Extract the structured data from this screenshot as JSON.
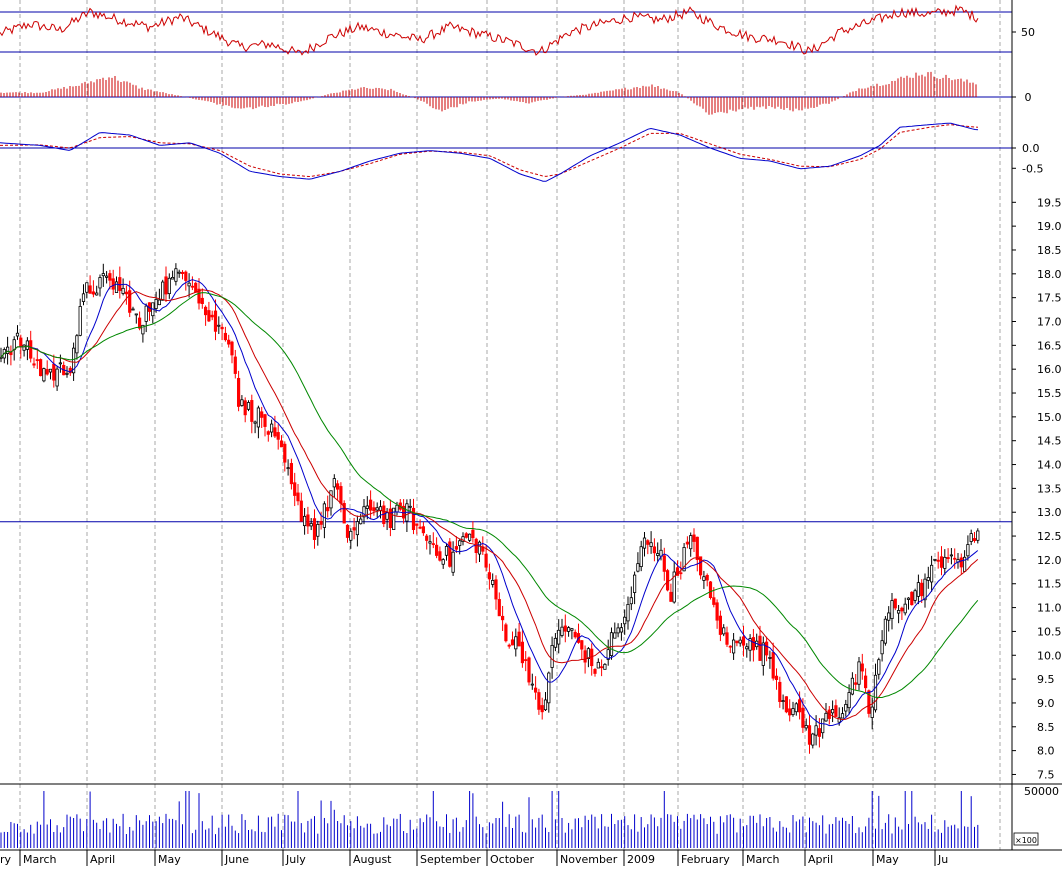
{
  "chart_data": {
    "type": "candlestick-stock-chart",
    "x_labels": [
      "ry",
      "March",
      "April",
      "May",
      "June",
      "July",
      "August",
      "September",
      "October",
      "November",
      "2009",
      "February",
      "March",
      "April",
      "May",
      "Ju"
    ],
    "price": {
      "ylim": [
        7.3,
        19.8
      ],
      "ticks": [
        "19.5",
        "19.0",
        "18.5",
        "18.0",
        "17.5",
        "17.0",
        "16.5",
        "16.0",
        "15.5",
        "15.0",
        "14.5",
        "14.0",
        "13.5",
        "13.0",
        "12.5",
        "12.0",
        "11.5",
        "11.0",
        "10.5",
        "10.0",
        "9.5",
        "9.0",
        "8.5",
        "8.0",
        "7.5"
      ],
      "horizontal_line": 12.8,
      "close_anchors": [
        [
          0,
          16.4
        ],
        [
          20,
          16.6
        ],
        [
          40,
          16.0
        ],
        [
          55,
          15.9
        ],
        [
          70,
          16.1
        ],
        [
          85,
          17.6
        ],
        [
          100,
          17.8
        ],
        [
          115,
          17.8
        ],
        [
          130,
          17.4
        ],
        [
          140,
          16.8
        ],
        [
          155,
          17.6
        ],
        [
          170,
          17.8
        ],
        [
          185,
          18.1
        ],
        [
          195,
          17.8
        ],
        [
          205,
          17.2
        ],
        [
          215,
          16.9
        ],
        [
          230,
          16.7
        ],
        [
          240,
          15.2
        ],
        [
          255,
          15.1
        ],
        [
          270,
          14.7
        ],
        [
          285,
          14.0
        ],
        [
          295,
          13.2
        ],
        [
          305,
          12.9
        ],
        [
          315,
          12.6
        ],
        [
          325,
          13.0
        ],
        [
          335,
          13.7
        ],
        [
          345,
          12.5
        ],
        [
          360,
          12.8
        ],
        [
          375,
          13.2
        ],
        [
          390,
          12.8
        ],
        [
          405,
          13.1
        ],
        [
          420,
          12.6
        ],
        [
          435,
          12.3
        ],
        [
          450,
          12.0
        ],
        [
          465,
          12.5
        ],
        [
          480,
          12.3
        ],
        [
          490,
          11.6
        ],
        [
          500,
          10.8
        ],
        [
          510,
          10.3
        ],
        [
          520,
          10.2
        ],
        [
          530,
          9.6
        ],
        [
          540,
          8.6
        ],
        [
          545,
          9.1
        ],
        [
          550,
          9.9
        ],
        [
          560,
          10.6
        ],
        [
          570,
          10.5
        ],
        [
          580,
          10.2
        ],
        [
          590,
          9.9
        ],
        [
          600,
          9.6
        ],
        [
          610,
          10.3
        ],
        [
          620,
          10.6
        ],
        [
          630,
          11.0
        ],
        [
          640,
          12.2
        ],
        [
          650,
          12.5
        ],
        [
          660,
          12.1
        ],
        [
          670,
          11.3
        ],
        [
          680,
          11.9
        ],
        [
          690,
          12.4
        ],
        [
          700,
          11.9
        ],
        [
          710,
          11.2
        ],
        [
          720,
          10.6
        ],
        [
          730,
          10.1
        ],
        [
          740,
          10.5
        ],
        [
          750,
          10.2
        ],
        [
          760,
          10.1
        ],
        [
          770,
          10.0
        ],
        [
          780,
          9.2
        ],
        [
          790,
          8.9
        ],
        [
          800,
          8.7
        ],
        [
          810,
          8.3
        ],
        [
          820,
          8.4
        ],
        [
          830,
          8.9
        ],
        [
          840,
          8.8
        ],
        [
          850,
          9.2
        ],
        [
          860,
          9.7
        ],
        [
          870,
          8.7
        ],
        [
          880,
          10.1
        ],
        [
          890,
          11.0
        ],
        [
          900,
          11.1
        ],
        [
          910,
          11.1
        ],
        [
          920,
          11.4
        ],
        [
          930,
          11.7
        ],
        [
          940,
          12.0
        ],
        [
          950,
          12.2
        ],
        [
          960,
          11.7
        ],
        [
          970,
          12.6
        ],
        [
          976,
          12.4
        ]
      ],
      "moving_averages": [
        {
          "color": "#0000cc",
          "period": 10
        },
        {
          "color": "#cc0000",
          "period": 18
        },
        {
          "color": "#008800",
          "period": 38
        }
      ]
    },
    "volume": {
      "scale_label": "50000",
      "scale_value": 50000,
      "multiplier_label": "×100"
    },
    "rsi": {
      "ticks": [
        "50"
      ],
      "upper_line": 70,
      "lower_line": 30,
      "anchors": [
        [
          0,
          48
        ],
        [
          30,
          58
        ],
        [
          60,
          52
        ],
        [
          90,
          70
        ],
        [
          120,
          62
        ],
        [
          150,
          55
        ],
        [
          180,
          65
        ],
        [
          210,
          50
        ],
        [
          240,
          35
        ],
        [
          270,
          38
        ],
        [
          300,
          28
        ],
        [
          330,
          45
        ],
        [
          360,
          55
        ],
        [
          390,
          48
        ],
        [
          420,
          42
        ],
        [
          450,
          55
        ],
        [
          480,
          48
        ],
        [
          510,
          40
        ],
        [
          540,
          30
        ],
        [
          570,
          50
        ],
        [
          600,
          58
        ],
        [
          630,
          65
        ],
        [
          660,
          62
        ],
        [
          690,
          70
        ],
        [
          720,
          55
        ],
        [
          750,
          45
        ],
        [
          780,
          42
        ],
        [
          810,
          30
        ],
        [
          840,
          50
        ],
        [
          870,
          60
        ],
        [
          900,
          70
        ],
        [
          930,
          68
        ],
        [
          960,
          72
        ],
        [
          976,
          65
        ]
      ]
    },
    "histogram": {
      "ticks": [
        "0"
      ],
      "anchors": [
        [
          0,
          3
        ],
        [
          40,
          3
        ],
        [
          80,
          8
        ],
        [
          110,
          14
        ],
        [
          140,
          6
        ],
        [
          170,
          2
        ],
        [
          200,
          -2
        ],
        [
          240,
          -8
        ],
        [
          270,
          -6
        ],
        [
          300,
          -3
        ],
        [
          330,
          2
        ],
        [
          360,
          6
        ],
        [
          390,
          5
        ],
        [
          420,
          -2
        ],
        [
          440,
          -10
        ],
        [
          470,
          -3
        ],
        [
          500,
          -1
        ],
        [
          530,
          -4
        ],
        [
          560,
          0
        ],
        [
          590,
          2
        ],
        [
          620,
          5
        ],
        [
          650,
          8
        ],
        [
          680,
          3
        ],
        [
          710,
          -12
        ],
        [
          740,
          -8
        ],
        [
          770,
          -7
        ],
        [
          800,
          -9
        ],
        [
          830,
          -4
        ],
        [
          860,
          6
        ],
        [
          890,
          10
        ],
        [
          920,
          16
        ],
        [
          940,
          14
        ],
        [
          976,
          9
        ]
      ]
    },
    "macd": {
      "ticks": [
        "0.0",
        "-0.5"
      ],
      "zero_line": 0,
      "line_anchors": [
        [
          0,
          0.1
        ],
        [
          40,
          0.05
        ],
        [
          70,
          -0.05
        ],
        [
          100,
          0.3
        ],
        [
          130,
          0.25
        ],
        [
          160,
          0.05
        ],
        [
          190,
          0.1
        ],
        [
          220,
          -0.1
        ],
        [
          250,
          -0.45
        ],
        [
          280,
          -0.55
        ],
        [
          310,
          -0.6
        ],
        [
          340,
          -0.45
        ],
        [
          370,
          -0.25
        ],
        [
          400,
          -0.1
        ],
        [
          430,
          -0.05
        ],
        [
          460,
          -0.1
        ],
        [
          490,
          -0.2
        ],
        [
          520,
          -0.5
        ],
        [
          545,
          -0.65
        ],
        [
          560,
          -0.5
        ],
        [
          590,
          -0.15
        ],
        [
          620,
          0.1
        ],
        [
          650,
          0.38
        ],
        [
          680,
          0.25
        ],
        [
          710,
          0.0
        ],
        [
          740,
          -0.2
        ],
        [
          770,
          -0.25
        ],
        [
          800,
          -0.4
        ],
        [
          830,
          -0.35
        ],
        [
          860,
          -0.15
        ],
        [
          880,
          0.05
        ],
        [
          900,
          0.4
        ],
        [
          930,
          0.45
        ],
        [
          950,
          0.48
        ],
        [
          976,
          0.35
        ]
      ],
      "signal_anchors": [
        [
          0,
          0.05
        ],
        [
          40,
          0.06
        ],
        [
          70,
          0.0
        ],
        [
          100,
          0.2
        ],
        [
          130,
          0.22
        ],
        [
          160,
          0.1
        ],
        [
          190,
          0.08
        ],
        [
          220,
          -0.05
        ],
        [
          250,
          -0.35
        ],
        [
          280,
          -0.5
        ],
        [
          310,
          -0.55
        ],
        [
          340,
          -0.45
        ],
        [
          370,
          -0.3
        ],
        [
          400,
          -0.12
        ],
        [
          430,
          -0.06
        ],
        [
          460,
          -0.08
        ],
        [
          490,
          -0.15
        ],
        [
          520,
          -0.42
        ],
        [
          545,
          -0.55
        ],
        [
          560,
          -0.5
        ],
        [
          590,
          -0.25
        ],
        [
          620,
          0.0
        ],
        [
          650,
          0.28
        ],
        [
          680,
          0.28
        ],
        [
          710,
          0.08
        ],
        [
          740,
          -0.12
        ],
        [
          770,
          -0.22
        ],
        [
          800,
          -0.35
        ],
        [
          830,
          -0.36
        ],
        [
          860,
          -0.22
        ],
        [
          880,
          -0.02
        ],
        [
          900,
          0.3
        ],
        [
          930,
          0.4
        ],
        [
          950,
          0.45
        ],
        [
          976,
          0.4
        ]
      ]
    },
    "colors": {
      "up_candle": "#000000",
      "down_candle": "#ff0000",
      "reference_line": "#0000aa",
      "rsi_line": "#cc0000",
      "histogram_bars": "#cc0000",
      "macd_line": "#0000cc",
      "signal_line": "#cc0000",
      "volume_bars": "#0000cc",
      "grid": "#aaaaaa"
    }
  }
}
